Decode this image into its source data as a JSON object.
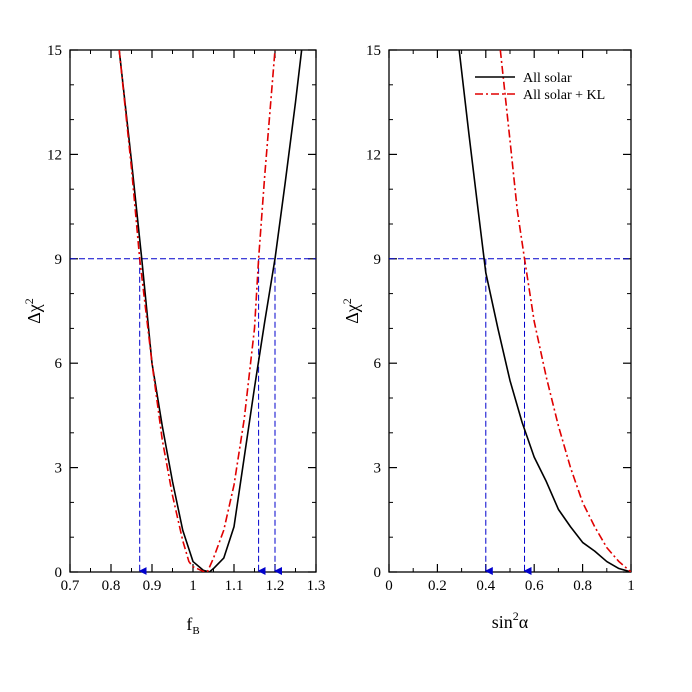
{
  "colors": {
    "all_solar": "#000000",
    "all_solar_kl": "#e00000",
    "threshold": "#0000cc",
    "axes": "#000000"
  },
  "chart_data": [
    {
      "type": "line",
      "xlabel": "f",
      "xlabel_sub": "B",
      "ylabel": "Δχ",
      "ylabel_sup": "2",
      "xlim": [
        0.7,
        1.3
      ],
      "ylim": [
        0,
        15
      ],
      "xticks": [
        0.7,
        0.8,
        0.9,
        1.0,
        1.1,
        1.2,
        1.3
      ],
      "xtick_labels": [
        "0.7",
        "0.8",
        "0.9",
        "1",
        "1.1",
        "1.2",
        "1.3"
      ],
      "yticks": [
        0,
        3,
        6,
        9,
        12,
        15
      ],
      "ytick_labels": [
        "0",
        "3",
        "6",
        "9",
        "12",
        "15"
      ],
      "grid": false,
      "series": [
        {
          "style": "solid",
          "color": "#000000",
          "x": [
            0.82,
            0.85,
            0.875,
            0.9,
            0.925,
            0.95,
            0.975,
            1.0,
            1.025,
            1.04,
            1.05,
            1.075,
            1.1,
            1.125,
            1.15,
            1.175,
            1.2,
            1.225,
            1.25,
            1.265
          ],
          "y": [
            15.0,
            11.8,
            9.0,
            6.0,
            4.2,
            2.6,
            1.2,
            0.3,
            0.05,
            0.0,
            0.1,
            0.4,
            1.3,
            3.3,
            5.3,
            7.2,
            9.0,
            11.2,
            13.5,
            15.0
          ]
        },
        {
          "style": "dashdot",
          "color": "#e00000",
          "x": [
            0.82,
            0.85,
            0.87,
            0.9,
            0.925,
            0.95,
            0.975,
            0.99,
            1.0,
            1.025,
            1.035,
            1.05,
            1.075,
            1.1,
            1.125,
            1.15,
            1.16,
            1.175,
            1.2
          ],
          "y": [
            15.0,
            11.6,
            9.0,
            6.0,
            3.8,
            2.2,
            0.9,
            0.3,
            0.15,
            0.02,
            0.0,
            0.4,
            1.2,
            2.5,
            4.4,
            7.0,
            9.0,
            11.4,
            15.0
          ]
        }
      ],
      "threshold": {
        "y": 9,
        "arrows_x": [
          0.87,
          1.16,
          1.2
        ]
      }
    },
    {
      "type": "line",
      "xlabel": "sin",
      "xlabel_sup": "2",
      "xlabel_tail": "α",
      "ylabel": "Δχ",
      "ylabel_sup": "2",
      "xlim": [
        0,
        1
      ],
      "ylim": [
        0,
        15
      ],
      "xticks": [
        0,
        0.2,
        0.4,
        0.6,
        0.8,
        1.0
      ],
      "xtick_labels": [
        "0",
        "0.2",
        "0.4",
        "0.6",
        "0.8",
        "1"
      ],
      "yticks": [
        0,
        3,
        6,
        9,
        12,
        15
      ],
      "ytick_labels": [
        "0",
        "3",
        "6",
        "9",
        "12",
        "15"
      ],
      "grid": false,
      "legend": {
        "position": "top-right",
        "entries": [
          {
            "label": "All solar",
            "color": "#000000",
            "style": "solid"
          },
          {
            "label": "All solar + KL",
            "color": "#e00000",
            "style": "dashdot"
          }
        ]
      },
      "series": [
        {
          "name": "All solar",
          "style": "solid",
          "color": "#000000",
          "x": [
            0.29,
            0.33,
            0.37,
            0.4,
            0.45,
            0.5,
            0.55,
            0.6,
            0.65,
            0.7,
            0.75,
            0.8,
            0.85,
            0.9,
            0.95,
            1.0
          ],
          "y": [
            15.0,
            12.6,
            10.3,
            8.6,
            7.0,
            5.5,
            4.3,
            3.3,
            2.6,
            1.8,
            1.3,
            0.85,
            0.6,
            0.3,
            0.1,
            0.0
          ]
        },
        {
          "name": "All solar + KL",
          "style": "dashdot",
          "color": "#e00000",
          "x": [
            0.46,
            0.5,
            0.53,
            0.56,
            0.6,
            0.65,
            0.7,
            0.75,
            0.8,
            0.85,
            0.9,
            0.95,
            1.0
          ],
          "y": [
            15.0,
            12.4,
            10.4,
            9.0,
            7.2,
            5.6,
            4.2,
            3.0,
            2.0,
            1.3,
            0.7,
            0.3,
            0.0
          ]
        }
      ],
      "threshold": {
        "y": 9,
        "arrows_x": [
          0.4,
          0.56
        ]
      }
    }
  ]
}
